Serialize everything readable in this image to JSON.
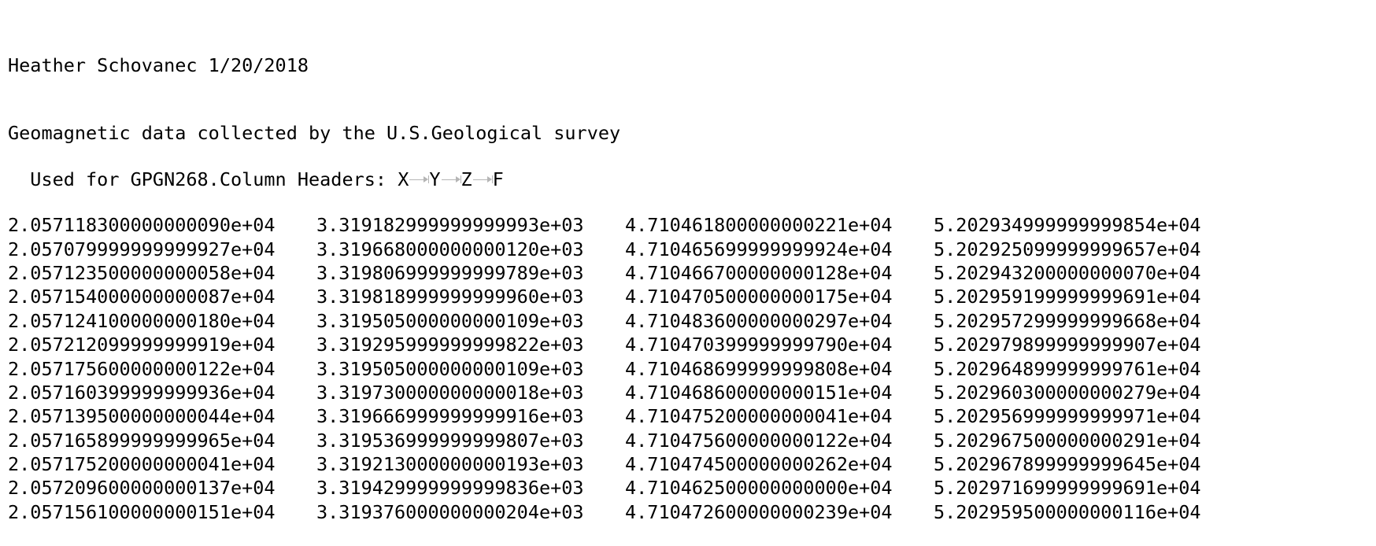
{
  "header": {
    "line1": "Heather Schovanec 1/20/2018",
    "line2": "Geomagnetic data collected by the U.S.Geological survey",
    "line3_prefix": "Used for GPGN268.Column Headers: ",
    "columns": [
      "X",
      "Y",
      "Z",
      "F"
    ],
    "tab_icon": "tab-arrow-icon"
  },
  "rows": [
    [
      "2.057118300000000090e+04",
      "3.319182999999999993e+03",
      "4.710461800000000221e+04",
      "5.202934999999999854e+04"
    ],
    [
      "2.057079999999999927e+04",
      "3.319668000000000120e+03",
      "4.710465699999999924e+04",
      "5.202925099999999657e+04"
    ],
    [
      "2.057123500000000058e+04",
      "3.319806999999999789e+03",
      "4.710466700000000128e+04",
      "5.202943200000000070e+04"
    ],
    [
      "2.057154000000000087e+04",
      "3.319818999999999960e+03",
      "4.710470500000000175e+04",
      "5.202959199999999691e+04"
    ],
    [
      "2.057124100000000180e+04",
      "3.319505000000000109e+03",
      "4.710483600000000297e+04",
      "5.202957299999999668e+04"
    ],
    [
      "2.057212099999999919e+04",
      "3.319295999999999822e+03",
      "4.710470399999999790e+04",
      "5.202979899999999907e+04"
    ],
    [
      "2.057175600000000122e+04",
      "3.319505000000000109e+03",
      "4.710468699999999808e+04",
      "5.202964899999999761e+04"
    ],
    [
      "2.057160399999999936e+04",
      "3.319730000000000018e+03",
      "4.710468600000000151e+04",
      "5.202960300000000279e+04"
    ],
    [
      "2.057139500000000044e+04",
      "3.319666999999999916e+03",
      "4.710475200000000041e+04",
      "5.202956999999999971e+04"
    ],
    [
      "2.057165899999999965e+04",
      "3.319536999999999807e+03",
      "4.710475600000000122e+04",
      "5.202967500000000291e+04"
    ],
    [
      "2.057175200000000041e+04",
      "3.319213000000000193e+03",
      "4.710474500000000262e+04",
      "5.202967899999999645e+04"
    ],
    [
      "2.057209600000000137e+04",
      "3.319429999999999836e+03",
      "4.710462500000000000e+04",
      "5.202971699999999691e+04"
    ],
    [
      "2.057156100000000151e+04",
      "3.319376000000000204e+03",
      "4.710472600000000239e+04",
      "5.202959500000000116e+04"
    ]
  ]
}
